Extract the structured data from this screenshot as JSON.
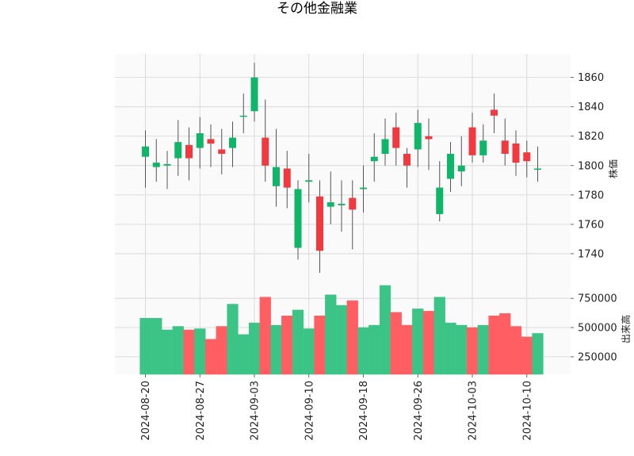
{
  "chart_data": [
    {
      "type": "candlestick",
      "title": "その他金融業",
      "ylabel": "株価",
      "ylim": [
        1720,
        1876
      ],
      "yticks": [
        1740,
        1760,
        1780,
        1800,
        1820,
        1840,
        1860
      ],
      "up_color": "#0fb569",
      "down_color": "#f03a40",
      "dates": [
        "2024-08-20",
        "2024-08-21",
        "2024-08-22",
        "2024-08-23",
        "2024-08-26",
        "2024-08-27",
        "2024-08-28",
        "2024-08-29",
        "2024-08-30",
        "2024-09-02",
        "2024-09-03",
        "2024-09-04",
        "2024-09-05",
        "2024-09-06",
        "2024-09-09",
        "2024-09-10",
        "2024-09-11",
        "2024-09-12",
        "2024-09-13",
        "2024-09-17",
        "2024-09-18",
        "2024-09-19",
        "2024-09-20",
        "2024-09-24",
        "2024-09-25",
        "2024-09-26",
        "2024-09-27",
        "2024-09-30",
        "2024-10-01",
        "2024-10-02",
        "2024-10-03",
        "2024-10-04",
        "2024-10-07",
        "2024-10-08",
        "2024-10-09",
        "2024-10-10",
        "2024-10-11"
      ],
      "xticks": [
        "2024-08-20",
        "2024-08-27",
        "2024-09-03",
        "2024-09-10",
        "2024-09-18",
        "2024-09-26",
        "2024-10-03",
        "2024-10-10"
      ],
      "open": [
        1806,
        1799,
        1800,
        1805,
        1814,
        1812,
        1818,
        1811,
        1812,
        1834,
        1837,
        1819,
        1786,
        1798,
        1744,
        1789,
        1779,
        1772,
        1773,
        1778,
        1784,
        1803,
        1808,
        1826,
        1808,
        1811,
        1820,
        1767,
        1791,
        1796,
        1826,
        1807,
        1838,
        1817,
        1815,
        1809,
        1798
      ],
      "close": [
        1813,
        1802,
        1801,
        1816,
        1805,
        1822,
        1815,
        1808,
        1819,
        1834,
        1860,
        1800,
        1799,
        1785,
        1784,
        1790,
        1742,
        1775,
        1774,
        1770,
        1785,
        1806,
        1818,
        1812,
        1800,
        1829,
        1818,
        1785,
        1808,
        1800,
        1807,
        1817,
        1834,
        1808,
        1802,
        1803,
        1798
      ],
      "high": [
        1824,
        1818,
        1810,
        1831,
        1826,
        1833,
        1828,
        1825,
        1830,
        1849,
        1870,
        1845,
        1825,
        1810,
        1790,
        1808,
        1790,
        1796,
        1790,
        1790,
        1800,
        1822,
        1832,
        1836,
        1812,
        1838,
        1832,
        1803,
        1816,
        1820,
        1836,
        1828,
        1849,
        1832,
        1824,
        1817,
        1813
      ],
      "low": [
        1785,
        1789,
        1784,
        1793,
        1790,
        1798,
        1799,
        1794,
        1799,
        1822,
        1830,
        1789,
        1772,
        1771,
        1736,
        1775,
        1727,
        1760,
        1755,
        1743,
        1768,
        1789,
        1800,
        1800,
        1785,
        1799,
        1797,
        1762,
        1782,
        1786,
        1802,
        1802,
        1822,
        1800,
        1793,
        1792,
        1789
      ]
    },
    {
      "type": "bar",
      "ylabel": "出来高",
      "yticks": [
        250000,
        500000,
        750000
      ],
      "ylim": [
        100000,
        880000
      ],
      "up_color": "#3cc486",
      "down_color": "#ff5f63",
      "values": [
        580000,
        580000,
        480000,
        510000,
        480000,
        490000,
        400000,
        510000,
        700000,
        440000,
        540000,
        760000,
        520000,
        600000,
        650000,
        490000,
        600000,
        780000,
        690000,
        730000,
        500000,
        520000,
        860000,
        630000,
        520000,
        660000,
        640000,
        760000,
        540000,
        520000,
        500000,
        520000,
        600000,
        620000,
        510000,
        420000,
        450000
      ]
    }
  ]
}
